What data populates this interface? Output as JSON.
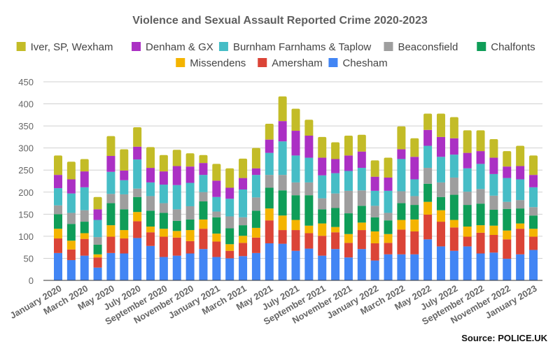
{
  "chart_data": {
    "type": "bar",
    "stacked": true,
    "title": "Violence and Sexual Assault Reported Crime 2020-2023",
    "source": "Source: POLICE.UK",
    "xlabel": "",
    "ylabel": "",
    "ylim": [
      0,
      450
    ],
    "yticks": [
      0,
      50,
      100,
      150,
      200,
      250,
      300,
      350,
      400,
      450
    ],
    "grid": true,
    "legend_position": "top",
    "categories": [
      "January 2020",
      "February 2020",
      "March 2020",
      "April 2020",
      "May 2020",
      "June 2020",
      "July 2020",
      "August 2020",
      "September 2020",
      "October 2020",
      "November 2020",
      "December 2020",
      "January 2021",
      "February 2021",
      "March 2021",
      "April 2021",
      "May 2021",
      "June 2021",
      "July 2021",
      "August 2021",
      "September 2021",
      "October 2021",
      "November 2021",
      "December 2021",
      "January 2022",
      "February 2022",
      "March 2022",
      "April 2022",
      "May 2022",
      "June 2022",
      "July 2022",
      "August 2022",
      "September 2022",
      "October 2022",
      "November 2022",
      "December 2022",
      "January 2023"
    ],
    "x_tick_labels": [
      "January 2020",
      "March 2020",
      "May 2020",
      "July 2020",
      "September 2020",
      "November 2020",
      "January 2021",
      "March 2021",
      "May 2021",
      "July 2021",
      "September 2021",
      "November 2021",
      "January 2022",
      "March 2022",
      "May 2022",
      "July 2022",
      "September 2022",
      "November 2022",
      "January 2023"
    ],
    "legend_order": [
      "Iver, SP, Wexham",
      "Denham & GX",
      "Burnham Farnhams & Taplow",
      "Beaconsfield",
      "Chalfonts",
      "Missendens",
      "Amersham",
      "Chesham"
    ],
    "series": [
      {
        "name": "Chesham",
        "color": "#4285f4",
        "values": [
          62,
          46,
          56,
          29,
          62,
          61,
          96,
          78,
          53,
          56,
          61,
          71,
          53,
          50,
          55,
          62,
          84,
          83,
          67,
          72,
          56,
          71,
          52,
          71,
          45,
          59,
          59,
          59,
          93,
          77,
          67,
          77,
          61,
          63,
          49,
          59,
          69
        ]
      },
      {
        "name": "Amersham",
        "color": "#db4437",
        "values": [
          33,
          24,
          38,
          23,
          37,
          34,
          38,
          31,
          46,
          41,
          28,
          46,
          35,
          17,
          30,
          35,
          52,
          31,
          47,
          35,
          45,
          38,
          33,
          43,
          39,
          26,
          56,
          52,
          56,
          56,
          53,
          22,
          47,
          40,
          44,
          58,
          30
        ]
      },
      {
        "name": "Missendens",
        "color": "#f4b400",
        "values": [
          22,
          20,
          13,
          7,
          26,
          19,
          21,
          13,
          18,
          15,
          25,
          21,
          18,
          15,
          16,
          22,
          27,
          33,
          23,
          17,
          28,
          12,
          20,
          17,
          27,
          20,
          22,
          27,
          29,
          26,
          17,
          23,
          17,
          21,
          20,
          12,
          18
        ]
      },
      {
        "name": "Chalfonts",
        "color": "#0f9d58",
        "values": [
          33,
          38,
          26,
          22,
          50,
          47,
          34,
          36,
          36,
          23,
          24,
          41,
          37,
          36,
          24,
          39,
          47,
          57,
          56,
          69,
          32,
          43,
          47,
          38,
          32,
          31,
          38,
          33,
          41,
          30,
          57,
          49,
          49,
          36,
          49,
          34,
          30
        ]
      },
      {
        "name": "Beaconsfield",
        "color": "#9e9e9e",
        "values": [
          20,
          25,
          26,
          17,
          21,
          34,
          19,
          33,
          22,
          26,
          30,
          21,
          13,
          27,
          18,
          30,
          29,
          35,
          29,
          29,
          25,
          33,
          51,
          35,
          26,
          17,
          27,
          20,
          36,
          33,
          39,
          30,
          33,
          32,
          16,
          19,
          19
        ]
      },
      {
        "name": "Burnham Farnhams & Taplow",
        "color": "#46bdc6",
        "values": [
          39,
          44,
          52,
          39,
          50,
          32,
          66,
          31,
          42,
          55,
          53,
          39,
          33,
          40,
          63,
          51,
          50,
          76,
          61,
          56,
          52,
          46,
          45,
          51,
          34,
          50,
          73,
          38,
          50,
          58,
          52,
          53,
          57,
          49,
          54,
          47,
          45
        ]
      },
      {
        "name": "Denham & GX",
        "color": "#ab30c4",
        "values": [
          30,
          32,
          36,
          24,
          36,
          22,
          29,
          33,
          30,
          43,
          37,
          27,
          37,
          25,
          26,
          15,
          30,
          46,
          56,
          50,
          40,
          32,
          35,
          37,
          32,
          30,
          22,
          51,
          36,
          45,
          37,
          35,
          29,
          37,
          26,
          30,
          28
        ]
      },
      {
        "name": "Iver, SP, Wexham",
        "color": "#c3bc27",
        "values": [
          44,
          40,
          28,
          28,
          45,
          48,
          44,
          47,
          37,
          37,
          30,
          18,
          38,
          44,
          44,
          46,
          36,
          56,
          50,
          36,
          47,
          38,
          45,
          38,
          37,
          45,
          52,
          42,
          37,
          53,
          48,
          51,
          47,
          42,
          35,
          46,
          44
        ]
      }
    ]
  }
}
